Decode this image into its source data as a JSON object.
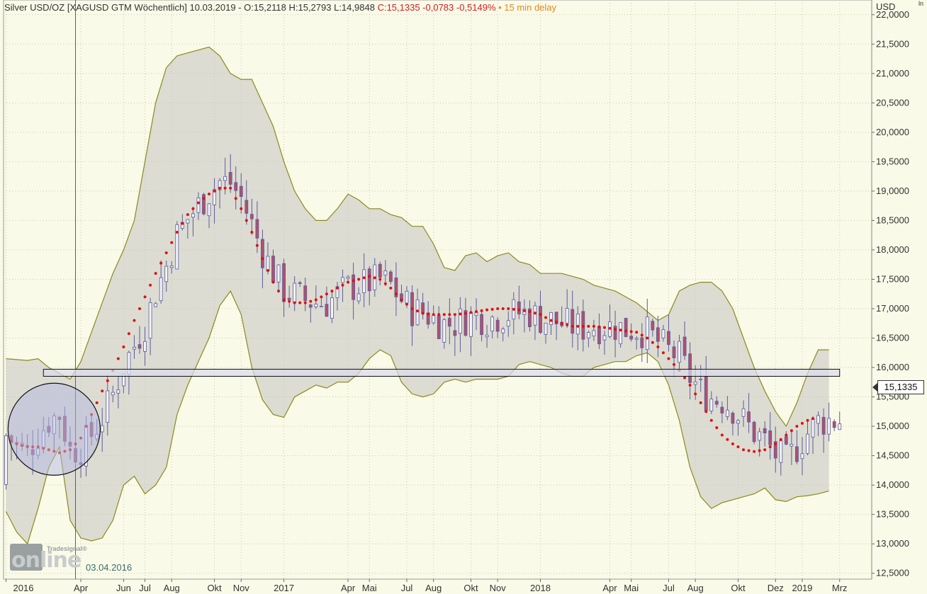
{
  "header": {
    "instrument": "Silver USD/OZ [XAGUSD GTM Wöchentlich] 10.03.2019 -",
    "ohl": "O:15,2118 H:15,2793 L:14,9848",
    "close_change": "C:15,1335 -0,0783 -0,5149%",
    "delay": "• 15 min delay"
  },
  "axis": {
    "unit": "USD",
    "unit_small": "ln",
    "current_price": "15,1335"
  },
  "annotation": {
    "date_label": "03.04.2016"
  },
  "logo": {
    "small_text": "Tradesignal®",
    "main_text": "online"
  },
  "colors": {
    "background": "#fafae8",
    "band_fill": "#dcdcd2",
    "band_line": "#8a8a1e",
    "candle_up": "#5c5c9e",
    "candle_down": "#b0506c",
    "dotted_ma": "#e01010",
    "support_zone": "#dadcee"
  },
  "chart_data": {
    "type": "candlestick",
    "title": "Silver USD/OZ [XAGUSD GTM Wöchentlich]",
    "ylabel": "USD",
    "ylim": [
      12.4,
      22.25
    ],
    "y_ticks": [
      "22,0000",
      "21,5000",
      "21,0000",
      "20,5000",
      "20,0000",
      "19,5000",
      "19,0000",
      "18,5000",
      "18,0000",
      "17,5000",
      "17,0000",
      "16,5000",
      "16,0000",
      "15,5000",
      "15,0000",
      "14,5000",
      "14,0000",
      "13,5000",
      "13,0000",
      "12,5000"
    ],
    "y_tick_values": [
      22,
      21.5,
      21,
      20.5,
      20,
      19.5,
      19,
      18.5,
      18,
      17.5,
      17,
      16.5,
      16,
      15.5,
      15,
      14.5,
      14,
      13.5,
      13,
      12.5
    ],
    "x_labels": [
      "2016",
      "Apr",
      "Jun",
      "Jul",
      "Aug",
      "Okt",
      "Nov",
      "2017",
      "Apr",
      "Mai",
      "Jul",
      "Aug",
      "Okt",
      "Nov",
      "2018",
      "Apr",
      "Mai",
      "Jul",
      "Aug",
      "Okt",
      "Dez",
      "2019",
      "Mrz"
    ],
    "x_label_weeks": [
      0,
      14,
      22,
      26,
      31,
      39,
      44,
      52,
      64,
      68,
      75,
      80,
      87,
      92,
      100,
      113,
      117,
      124,
      129,
      137,
      144,
      149,
      156
    ],
    "support_zone": [
      15.85,
      15.97
    ],
    "vertical_marker_week": 13,
    "circle_center": {
      "week": 9,
      "price": 14.95
    },
    "weeks": 157,
    "bb_upper": [
      [
        0,
        16.15
      ],
      [
        4,
        16.12
      ],
      [
        6,
        16.15
      ],
      [
        8,
        16.0
      ],
      [
        10,
        15.9
      ],
      [
        12,
        15.8
      ],
      [
        14,
        16.1
      ],
      [
        16,
        16.6
      ],
      [
        18,
        17.1
      ],
      [
        20,
        17.6
      ],
      [
        22,
        18.0
      ],
      [
        24,
        18.5
      ],
      [
        26,
        19.5
      ],
      [
        28,
        20.5
      ],
      [
        30,
        21.1
      ],
      [
        32,
        21.3
      ],
      [
        34,
        21.35
      ],
      [
        36,
        21.4
      ],
      [
        38,
        21.45
      ],
      [
        40,
        21.3
      ],
      [
        42,
        21.0
      ],
      [
        44,
        20.9
      ],
      [
        46,
        20.9
      ],
      [
        48,
        20.5
      ],
      [
        50,
        20.1
      ],
      [
        52,
        19.5
      ],
      [
        54,
        19.0
      ],
      [
        56,
        18.7
      ],
      [
        58,
        18.5
      ],
      [
        60,
        18.5
      ],
      [
        62,
        18.7
      ],
      [
        64,
        18.95
      ],
      [
        66,
        18.85
      ],
      [
        68,
        18.7
      ],
      [
        70,
        18.7
      ],
      [
        72,
        18.6
      ],
      [
        74,
        18.55
      ],
      [
        76,
        18.4
      ],
      [
        78,
        18.4
      ],
      [
        80,
        18.1
      ],
      [
        82,
        17.7
      ],
      [
        84,
        17.65
      ],
      [
        86,
        17.9
      ],
      [
        88,
        17.95
      ],
      [
        90,
        17.8
      ],
      [
        92,
        17.9
      ],
      [
        94,
        17.95
      ],
      [
        96,
        17.8
      ],
      [
        98,
        17.75
      ],
      [
        100,
        17.6
      ],
      [
        102,
        17.6
      ],
      [
        104,
        17.6
      ],
      [
        106,
        17.55
      ],
      [
        108,
        17.5
      ],
      [
        110,
        17.4
      ],
      [
        112,
        17.35
      ],
      [
        114,
        17.3
      ],
      [
        116,
        17.2
      ],
      [
        118,
        17.1
      ],
      [
        120,
        16.95
      ],
      [
        122,
        16.8
      ],
      [
        124,
        16.9
      ],
      [
        126,
        17.3
      ],
      [
        128,
        17.4
      ],
      [
        130,
        17.45
      ],
      [
        132,
        17.45
      ],
      [
        134,
        17.3
      ],
      [
        136,
        17.0
      ],
      [
        138,
        16.5
      ],
      [
        140,
        16.0
      ],
      [
        142,
        15.6
      ],
      [
        144,
        15.25
      ],
      [
        146,
        15.0
      ],
      [
        148,
        15.4
      ],
      [
        150,
        15.9
      ],
      [
        152,
        16.3
      ],
      [
        154,
        16.3
      ]
    ],
    "bb_lower": [
      [
        0,
        13.55
      ],
      [
        2,
        13.2
      ],
      [
        4,
        13.0
      ],
      [
        6,
        13.6
      ],
      [
        8,
        14.3
      ],
      [
        10,
        14.65
      ],
      [
        12,
        13.4
      ],
      [
        14,
        13.1
      ],
      [
        16,
        13.05
      ],
      [
        18,
        13.1
      ],
      [
        20,
        13.4
      ],
      [
        22,
        14.0
      ],
      [
        24,
        14.15
      ],
      [
        26,
        13.85
      ],
      [
        28,
        14.0
      ],
      [
        30,
        14.3
      ],
      [
        32,
        15.2
      ],
      [
        34,
        15.7
      ],
      [
        36,
        16.1
      ],
      [
        38,
        16.5
      ],
      [
        40,
        17.05
      ],
      [
        42,
        17.3
      ],
      [
        44,
        16.9
      ],
      [
        46,
        16.0
      ],
      [
        48,
        15.45
      ],
      [
        50,
        15.2
      ],
      [
        52,
        15.15
      ],
      [
        54,
        15.5
      ],
      [
        56,
        15.6
      ],
      [
        58,
        15.7
      ],
      [
        60,
        15.65
      ],
      [
        62,
        15.75
      ],
      [
        64,
        15.75
      ],
      [
        66,
        15.9
      ],
      [
        68,
        16.15
      ],
      [
        70,
        16.3
      ],
      [
        72,
        16.2
      ],
      [
        74,
        15.75
      ],
      [
        76,
        15.55
      ],
      [
        78,
        15.5
      ],
      [
        80,
        15.55
      ],
      [
        82,
        15.75
      ],
      [
        84,
        15.8
      ],
      [
        86,
        15.75
      ],
      [
        88,
        15.8
      ],
      [
        90,
        15.8
      ],
      [
        92,
        15.8
      ],
      [
        94,
        15.85
      ],
      [
        96,
        16.05
      ],
      [
        98,
        16.1
      ],
      [
        100,
        16.05
      ],
      [
        102,
        16.0
      ],
      [
        104,
        15.9
      ],
      [
        106,
        15.85
      ],
      [
        108,
        15.85
      ],
      [
        110,
        16.0
      ],
      [
        112,
        16.05
      ],
      [
        114,
        16.1
      ],
      [
        116,
        16.1
      ],
      [
        118,
        16.2
      ],
      [
        120,
        16.25
      ],
      [
        122,
        16.1
      ],
      [
        124,
        15.7
      ],
      [
        126,
        15.1
      ],
      [
        128,
        14.3
      ],
      [
        130,
        13.8
      ],
      [
        132,
        13.6
      ],
      [
        134,
        13.7
      ],
      [
        136,
        13.75
      ],
      [
        138,
        13.8
      ],
      [
        140,
        13.85
      ],
      [
        142,
        13.95
      ],
      [
        144,
        13.75
      ],
      [
        146,
        13.72
      ],
      [
        148,
        13.8
      ],
      [
        150,
        13.82
      ],
      [
        152,
        13.85
      ],
      [
        154,
        13.9
      ]
    ],
    "moving_average": [
      [
        0,
        14.8
      ],
      [
        2,
        14.7
      ],
      [
        4,
        14.65
      ],
      [
        6,
        14.65
      ],
      [
        8,
        14.6
      ],
      [
        10,
        14.55
      ],
      [
        12,
        14.6
      ],
      [
        14,
        14.8
      ],
      [
        16,
        15.2
      ],
      [
        18,
        15.6
      ],
      [
        20,
        15.95
      ],
      [
        22,
        16.35
      ],
      [
        24,
        16.8
      ],
      [
        26,
        17.2
      ],
      [
        28,
        17.6
      ],
      [
        30,
        17.95
      ],
      [
        32,
        18.3
      ],
      [
        34,
        18.6
      ],
      [
        36,
        18.8
      ],
      [
        38,
        18.95
      ],
      [
        40,
        19.05
      ],
      [
        42,
        19.05
      ],
      [
        44,
        18.7
      ],
      [
        46,
        18.3
      ],
      [
        48,
        17.85
      ],
      [
        50,
        17.45
      ],
      [
        52,
        17.15
      ],
      [
        54,
        17.1
      ],
      [
        56,
        17.1
      ],
      [
        58,
        17.15
      ],
      [
        60,
        17.25
      ],
      [
        62,
        17.35
      ],
      [
        64,
        17.45
      ],
      [
        66,
        17.5
      ],
      [
        68,
        17.55
      ],
      [
        70,
        17.5
      ],
      [
        72,
        17.35
      ],
      [
        74,
        17.15
      ],
      [
        76,
        17.0
      ],
      [
        78,
        16.92
      ],
      [
        80,
        16.9
      ],
      [
        82,
        16.9
      ],
      [
        84,
        16.9
      ],
      [
        86,
        16.92
      ],
      [
        88,
        16.95
      ],
      [
        90,
        16.98
      ],
      [
        92,
        17.0
      ],
      [
        94,
        17.0
      ],
      [
        96,
        16.98
      ],
      [
        98,
        16.95
      ],
      [
        100,
        16.9
      ],
      [
        102,
        16.8
      ],
      [
        104,
        16.75
      ],
      [
        106,
        16.7
      ],
      [
        108,
        16.7
      ],
      [
        110,
        16.7
      ],
      [
        112,
        16.68
      ],
      [
        114,
        16.65
      ],
      [
        116,
        16.62
      ],
      [
        118,
        16.6
      ],
      [
        120,
        16.5
      ],
      [
        122,
        16.35
      ],
      [
        124,
        16.15
      ],
      [
        126,
        15.95
      ],
      [
        128,
        15.7
      ],
      [
        130,
        15.4
      ],
      [
        132,
        15.1
      ],
      [
        134,
        14.85
      ],
      [
        136,
        14.7
      ],
      [
        138,
        14.6
      ],
      [
        140,
        14.57
      ],
      [
        142,
        14.6
      ],
      [
        144,
        14.7
      ],
      [
        146,
        14.85
      ],
      [
        148,
        15.0
      ],
      [
        150,
        15.1
      ],
      [
        151,
        15.13
      ]
    ]
  }
}
